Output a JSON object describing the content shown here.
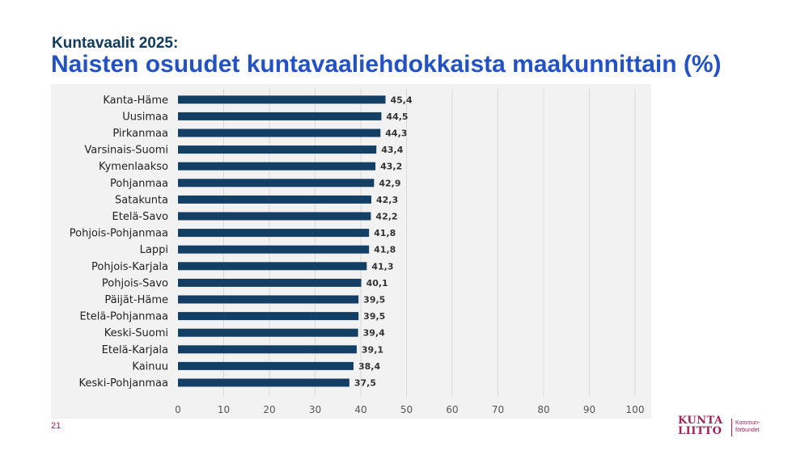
{
  "header": {
    "subtitle": "Kuntavaalit 2025:",
    "title": "Naisten osuudet kuntavaaliehdokkaista maakunnittain (%)"
  },
  "chart_data": {
    "type": "bar",
    "orientation": "horizontal",
    "title": "Naisten osuudet kuntavaaliehdokkaista maakunnittain (%)",
    "categories": [
      "Kanta-Häme",
      "Uusimaa",
      "Pirkanmaa",
      "Varsinais-Suomi",
      "Kymenlaakso",
      "Pohjanmaa",
      "Satakunta",
      "Etelä-Savo",
      "Pohjois-Pohjanmaa",
      "Lappi",
      "Pohjois-Karjala",
      "Pohjois-Savo",
      "Päijät-Häme",
      "Etelä-Pohjanmaa",
      "Keski-Suomi",
      "Etelä-Karjala",
      "Kainuu",
      "Keski-Pohjanmaa"
    ],
    "values": [
      45.4,
      44.5,
      44.3,
      43.4,
      43.2,
      42.9,
      42.3,
      42.2,
      41.8,
      41.8,
      41.3,
      40.1,
      39.5,
      39.5,
      39.4,
      39.1,
      38.4,
      37.5
    ],
    "value_labels": [
      "45,4",
      "44,5",
      "44,3",
      "43,4",
      "43,2",
      "42,9",
      "42,3",
      "42,2",
      "41,8",
      "41,8",
      "41,3",
      "40,1",
      "39,5",
      "39,5",
      "39,4",
      "39,1",
      "38,4",
      "37,5"
    ],
    "xlim": [
      0,
      100
    ],
    "xticks": [
      0,
      10,
      20,
      30,
      40,
      50,
      60,
      70,
      80,
      90,
      100
    ],
    "grid": true,
    "bar_color": "#123f63",
    "background_color": "#f2f2f2"
  },
  "footer": {
    "page_number": "21",
    "logo_text_line1": "KUNTA",
    "logo_text_line2": "LIITTO",
    "logo_side_line1": "Kommun-",
    "logo_side_line2": "förbundet",
    "logo_color": "#a0225a"
  }
}
